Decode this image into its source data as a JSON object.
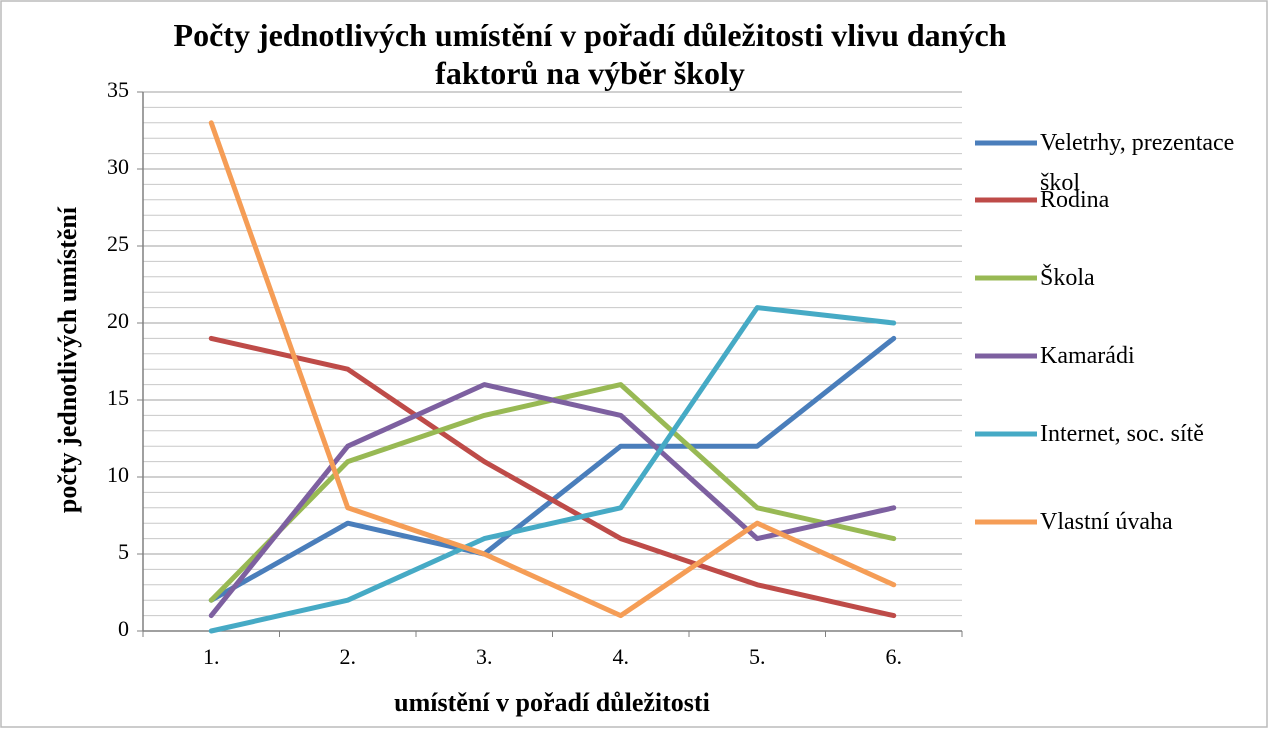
{
  "chart_data": {
    "type": "line",
    "title": "Počty jednotlivých umístění v pořadí důležitosti vlivu daných faktorů na výběr školy",
    "x_label": "umístění v pořadí důležitosti",
    "y_label": "počty jednotlivých umístění",
    "categories": [
      "1.",
      "2.",
      "3.",
      "4.",
      "5.",
      "6."
    ],
    "series": [
      {
        "name": "Veletrhy, prezentace škol",
        "color": "#4a7ebb",
        "values": [
          2,
          7,
          5,
          12,
          12,
          19
        ]
      },
      {
        "name": "Rodina",
        "color": "#be4b48",
        "values": [
          19,
          17,
          11,
          6,
          3,
          1
        ]
      },
      {
        "name": "Škola",
        "color": "#98b954",
        "values": [
          2,
          11,
          14,
          16,
          8,
          6
        ]
      },
      {
        "name": "Kamarádi",
        "color": "#7d60a0",
        "values": [
          1,
          12,
          16,
          14,
          6,
          8
        ]
      },
      {
        "name": "Internet, soc. sítě",
        "color": "#46aac5",
        "values": [
          0,
          2,
          6,
          8,
          21,
          20
        ]
      },
      {
        "name": "Vlastní úvaha",
        "color": "#f59d56",
        "values": [
          33,
          8,
          5,
          1,
          7,
          3
        ]
      }
    ],
    "ylim": [
      0,
      35
    ],
    "yticks": [
      0,
      5,
      10,
      15,
      20,
      25,
      30,
      35
    ],
    "minor_yticks": [
      1,
      2,
      3,
      4,
      6,
      7,
      8,
      9,
      11,
      12,
      13,
      14,
      16,
      17,
      18,
      19,
      21,
      22,
      23,
      24,
      26,
      27,
      28,
      29,
      31,
      32,
      33,
      34
    ],
    "grid": true,
    "legend": "right"
  }
}
